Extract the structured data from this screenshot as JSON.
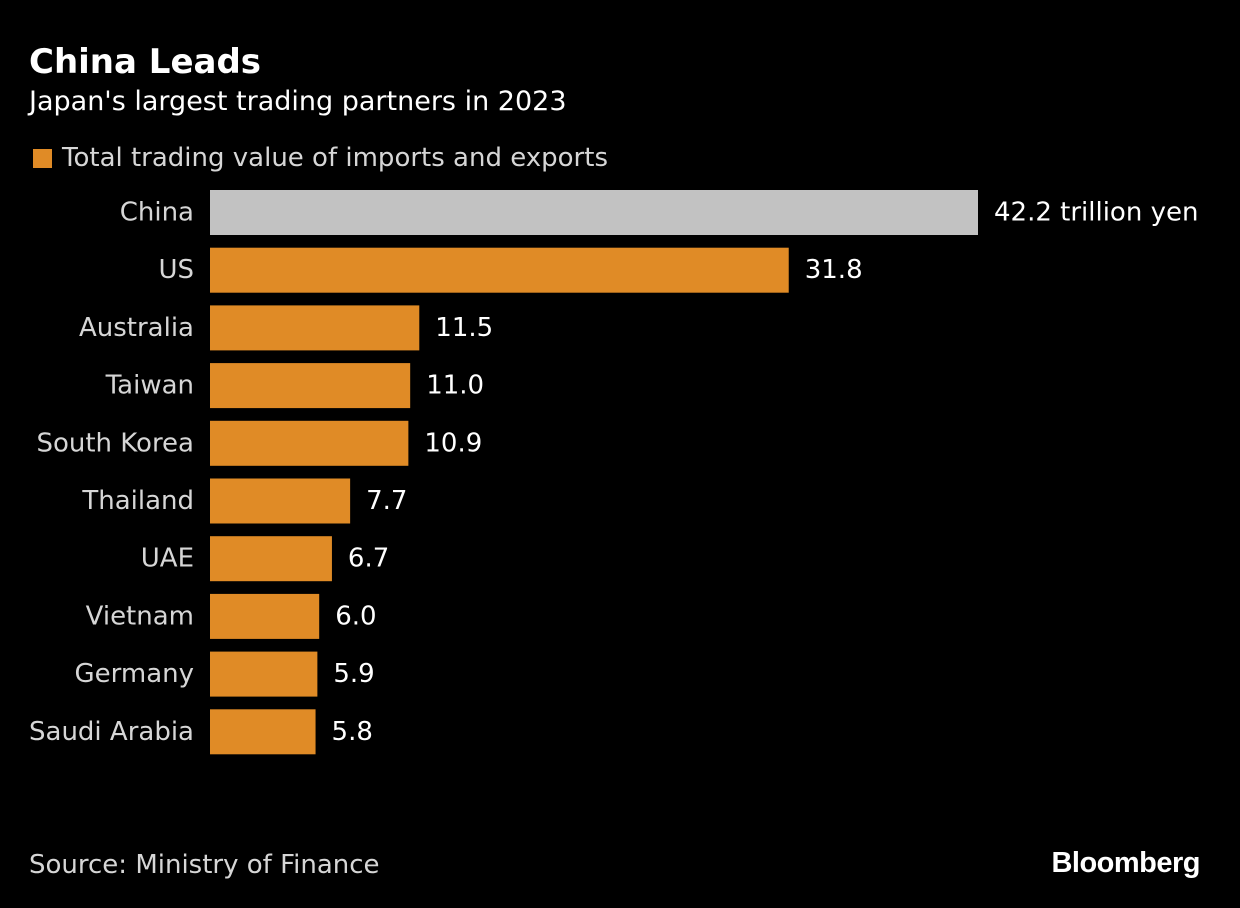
{
  "colors": {
    "background": "#000000",
    "bar": "#e08b26",
    "highlight_bar": "#c2c2c2",
    "text": "#ffffff",
    "muted_text": "#d6d6d6"
  },
  "chart_data": {
    "type": "bar",
    "orientation": "horizontal",
    "title": "China Leads",
    "subtitle": "Japan's largest trading partners in 2023",
    "legend": {
      "position": "top-left",
      "entries": [
        "Total trading value of imports and exports"
      ]
    },
    "categories": [
      "China",
      "US",
      "Australia",
      "Taiwan",
      "South Korea",
      "Thailand",
      "UAE",
      "Vietnam",
      "Germany",
      "Saudi Arabia"
    ],
    "series": [
      {
        "name": "Total trading value of imports and exports",
        "values": [
          42.2,
          31.8,
          11.5,
          11.0,
          10.9,
          7.7,
          6.7,
          6.0,
          5.9,
          5.8
        ]
      }
    ],
    "value_labels": [
      "42.2 trillion yen",
      "31.8",
      "11.5",
      "11.0",
      "10.9",
      "7.7",
      "6.7",
      "6.0",
      "5.9",
      "5.8"
    ],
    "highlighted_category": "China",
    "xlim": [
      0,
      42.2
    ],
    "grid": false,
    "axis_visible": false
  },
  "footer": {
    "source": "Source: Ministry of Finance",
    "brand": "Bloomberg"
  }
}
